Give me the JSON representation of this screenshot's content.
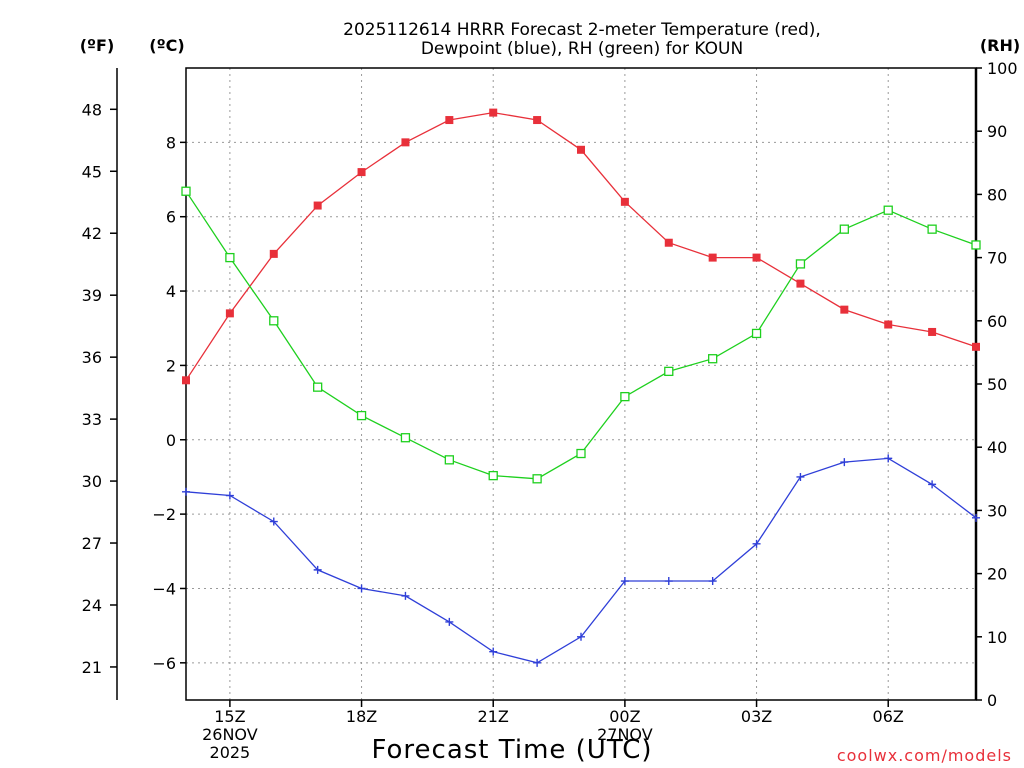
{
  "chart_data": {
    "type": "line",
    "title": "2025112614 HRRR Forecast 2-meter Temperature (red),",
    "subtitle": "Dewpoint (blue), RH (green) for KOUN",
    "xlabel": "Forecast Time (UTC)",
    "credit": "coolwx.com/models",
    "units": {
      "fahrenheit": "(ºF)",
      "celsius": "(ºC)",
      "rh": "(RH)"
    },
    "x_hours": [
      14,
      15,
      16,
      17,
      18,
      19,
      20,
      21,
      22,
      23,
      24,
      25,
      26,
      27,
      28,
      29,
      30,
      31,
      32
    ],
    "xlim": [
      14,
      32
    ],
    "x_ticks": [
      {
        "hour": 15,
        "lines": [
          "15Z",
          "26NOV",
          "2025"
        ]
      },
      {
        "hour": 18,
        "lines": [
          "18Z"
        ]
      },
      {
        "hour": 21,
        "lines": [
          "21Z"
        ]
      },
      {
        "hour": 24,
        "lines": [
          "00Z",
          "27NOV"
        ]
      },
      {
        "hour": 27,
        "lines": [
          "03Z"
        ]
      },
      {
        "hour": 30,
        "lines": [
          "06Z"
        ]
      }
    ],
    "celsius_ylim": [
      -7,
      10
    ],
    "celsius_ticks": [
      -6,
      -4,
      -2,
      0,
      2,
      4,
      6,
      8
    ],
    "fahrenheit_ticks": [
      21,
      24,
      27,
      30,
      33,
      36,
      39,
      42,
      45,
      48
    ],
    "rh_ylim": [
      0,
      100
    ],
    "rh_ticks": [
      0,
      10,
      20,
      30,
      40,
      50,
      60,
      70,
      80,
      90,
      100
    ],
    "series": [
      {
        "name": "Temperature",
        "axis": "celsius",
        "color": "#e8303a",
        "marker": "filled-square",
        "values": [
          1.6,
          3.4,
          5.0,
          6.3,
          7.2,
          8.0,
          8.6,
          8.8,
          8.6,
          7.8,
          6.4,
          5.3,
          4.9,
          4.9,
          4.2,
          3.5,
          3.1,
          2.9,
          2.5
        ]
      },
      {
        "name": "Dewpoint",
        "axis": "celsius",
        "color": "#2f3fd8",
        "marker": "plus",
        "values": [
          -1.4,
          -1.5,
          -2.2,
          -3.5,
          -4.0,
          -4.2,
          -4.9,
          -5.7,
          -6.0,
          -5.3,
          -3.8,
          -3.8,
          -3.8,
          -2.8,
          -1.0,
          -0.6,
          -0.5,
          -1.2,
          -2.1
        ]
      },
      {
        "name": "Relative Humidity",
        "axis": "rh",
        "color": "#1ed01e",
        "marker": "open-square",
        "values": [
          80.5,
          70,
          60,
          49.5,
          45,
          41.5,
          38,
          35.5,
          35,
          39,
          48,
          52,
          54,
          58,
          69,
          74.5,
          77.5,
          74.5,
          72
        ]
      }
    ]
  }
}
